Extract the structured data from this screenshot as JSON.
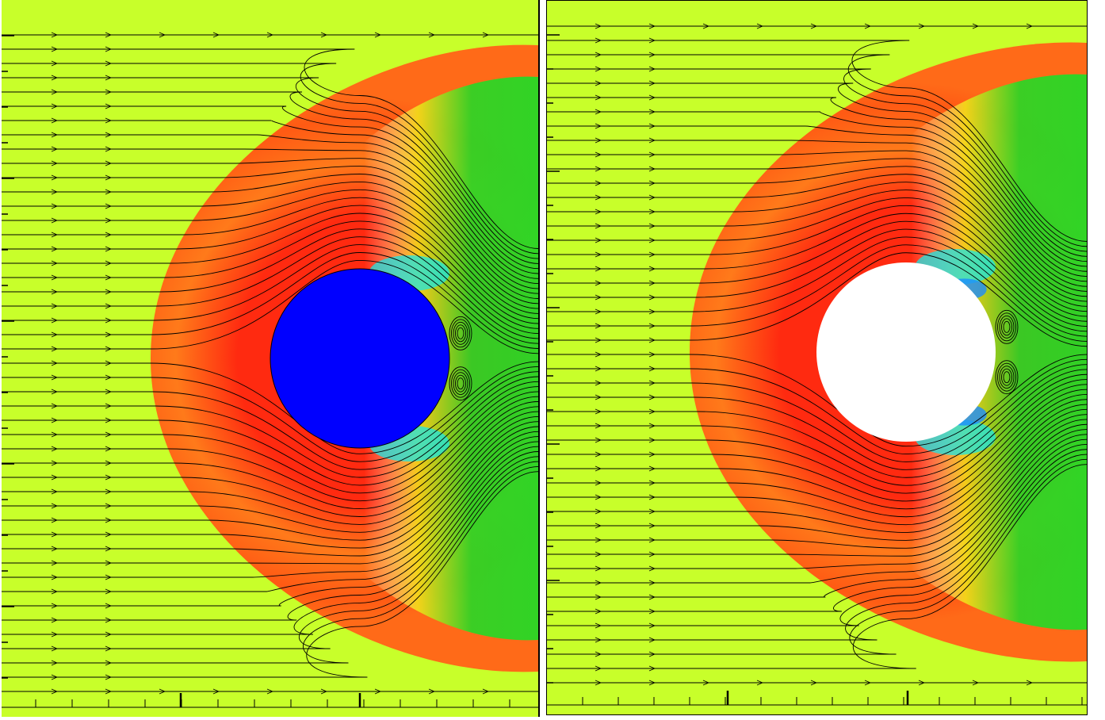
{
  "figure": {
    "panels": [
      {
        "id": "left",
        "obstacle_fill": "#0000ff",
        "obstacle_label": "cylinder"
      },
      {
        "id": "right",
        "obstacle_fill": "#ffffff",
        "obstacle_label": "cylinder"
      }
    ],
    "colormap": {
      "freestream": "#c8ff2a",
      "shock_high": "#ff2a10",
      "mid_orange": "#ff7a1a",
      "mid_yellow": "#f2e61a",
      "low_green": "#26d926",
      "low_cyan": "#1ae6e6",
      "low_blue": "#1a8cff",
      "streamline": "#000000"
    }
  }
}
